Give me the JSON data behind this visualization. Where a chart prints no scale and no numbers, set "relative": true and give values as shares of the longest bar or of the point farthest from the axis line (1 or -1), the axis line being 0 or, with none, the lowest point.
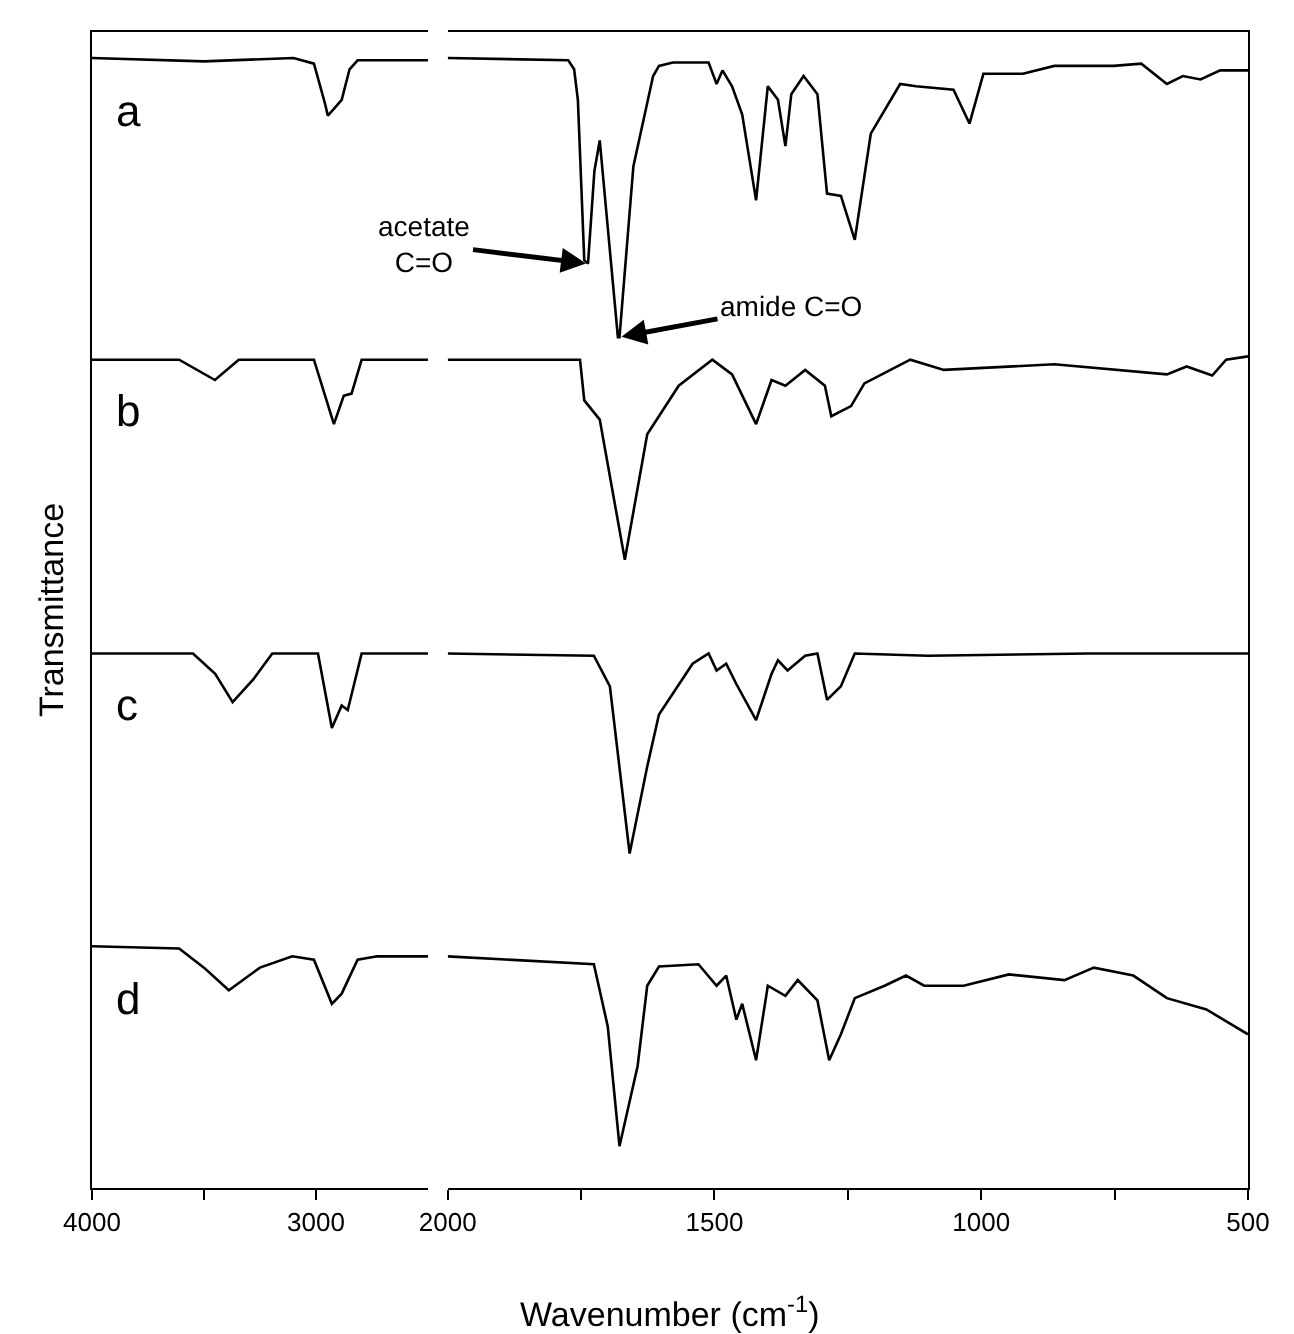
{
  "chart_data": [
    {
      "type": "line",
      "relative": true,
      "ylabel": "Transmittance",
      "tick_labels": "x",
      "xlim": [
        4000,
        2500
      ],
      "xticks": [
        4000,
        {
          "value": 3500,
          "label": null
        },
        3000
      ],
      "series": [
        {
          "name": "a",
          "color": "#000000",
          "x": [
            4000,
            3500,
            3100,
            3009,
            2960,
            2947,
            2920,
            2885,
            2850,
            2814,
            2500
          ],
          "values": [
            1.0,
            0.997,
            1.0,
            0.995,
            0.96,
            0.949,
            0.955,
            0.963,
            0.99,
            0.998,
            0.998
          ]
        },
        {
          "name": "b",
          "color": "#000000",
          "x": [
            4000,
            3611,
            3451,
            3345,
            3009,
            2920,
            2876,
            2841,
            2796,
            2500
          ],
          "values": [
            0.733,
            0.733,
            0.715,
            0.733,
            0.733,
            0.676,
            0.701,
            0.703,
            0.733,
            0.733
          ]
        },
        {
          "name": "c",
          "color": "#000000",
          "x": [
            4000,
            3549,
            3450,
            3372,
            3280,
            3195,
            2991,
            2929,
            2885,
            2858,
            2796,
            2500
          ],
          "values": [
            0.473,
            0.473,
            0.455,
            0.43,
            0.45,
            0.473,
            0.473,
            0.407,
            0.427,
            0.423,
            0.473,
            0.473
          ]
        },
        {
          "name": "d",
          "color": "#000000",
          "x": [
            4000,
            3611,
            3500,
            3389,
            3250,
            3106,
            3009,
            2929,
            2885,
            2814,
            2726,
            2500
          ],
          "values": [
            0.214,
            0.212,
            0.195,
            0.175,
            0.195,
            0.205,
            0.202,
            0.163,
            0.172,
            0.202,
            0.205,
            0.205
          ]
        }
      ]
    },
    {
      "type": "line",
      "relative": true,
      "xlabel": "Wavenumber (cm$^{-1}$)",
      "tick_labels": "x",
      "xlim": [
        2000,
        500
      ],
      "xticks": [
        2000,
        {
          "value": 1750,
          "label": null
        },
        1500,
        {
          "value": 1250,
          "label": null
        },
        1000,
        {
          "value": 750,
          "label": null
        },
        500
      ],
      "annotations": [
        {
          "text": "acetate\nC=O",
          "x": 1737,
          "y": 0.818
        },
        {
          "text": "amide C=O",
          "x": 1678,
          "y": 0.753
        }
      ],
      "series": [
        {
          "color": "#000000",
          "x": [
            2000,
            1774,
            1763,
            1756,
            1744,
            1737,
            1725,
            1715,
            1700,
            1681,
            1678,
            1652,
            1615,
            1604,
            1578,
            1511,
            1496,
            1485,
            1467,
            1448,
            1422,
            1400,
            1381,
            1367,
            1356,
            1333,
            1307,
            1289,
            1263,
            1237,
            1207,
            1152,
            1122,
            1052,
            1022,
            996,
            922,
            863,
            752,
            700,
            652,
            622,
            589,
            552,
            500
          ],
          "values": [
            1.0,
            0.998,
            0.99,
            0.963,
            0.821,
            0.818,
            0.9,
            0.927,
            0.85,
            0.753,
            0.753,
            0.904,
            0.984,
            0.993,
            0.996,
            0.996,
            0.977,
            0.989,
            0.975,
            0.95,
            0.874,
            0.975,
            0.963,
            0.922,
            0.968,
            0.984,
            0.968,
            0.88,
            0.878,
            0.839,
            0.933,
            0.977,
            0.975,
            0.972,
            0.942,
            0.986,
            0.986,
            0.993,
            0.993,
            0.995,
            0.977,
            0.984,
            0.981,
            0.989,
            0.989
          ]
        },
        {
          "color": "#000000",
          "x": [
            2000,
            1752,
            1744,
            1715,
            1668,
            1626,
            1567,
            1504,
            1467,
            1422,
            1393,
            1367,
            1330,
            1293,
            1281,
            1244,
            1219,
            1133,
            1070,
            863,
            652,
            615,
            567,
            541,
            500
          ],
          "values": [
            0.733,
            0.733,
            0.697,
            0.68,
            0.556,
            0.667,
            0.71,
            0.733,
            0.72,
            0.676,
            0.715,
            0.71,
            0.724,
            0.71,
            0.683,
            0.692,
            0.712,
            0.733,
            0.724,
            0.729,
            0.72,
            0.727,
            0.719,
            0.733,
            0.736
          ]
        },
        {
          "color": "#000000",
          "x": [
            2000,
            1726,
            1696,
            1659,
            1626,
            1604,
            1541,
            1511,
            1496,
            1478,
            1459,
            1422,
            1393,
            1381,
            1363,
            1330,
            1307,
            1289,
            1263,
            1237,
            1100,
            800,
            500
          ],
          "values": [
            0.473,
            0.471,
            0.444,
            0.296,
            0.373,
            0.419,
            0.464,
            0.473,
            0.458,
            0.464,
            0.446,
            0.414,
            0.455,
            0.467,
            0.458,
            0.471,
            0.473,
            0.432,
            0.444,
            0.473,
            0.471,
            0.473,
            0.473
          ]
        },
        {
          "color": "#000000",
          "x": [
            2000,
            1726,
            1700,
            1678,
            1644,
            1626,
            1604,
            1530,
            1496,
            1478,
            1459,
            1448,
            1422,
            1400,
            1367,
            1344,
            1307,
            1285,
            1263,
            1237,
            1181,
            1141,
            1107,
            1033,
            948,
            844,
            789,
            715,
            652,
            578,
            500
          ],
          "values": [
            0.205,
            0.198,
            0.143,
            0.037,
            0.108,
            0.179,
            0.196,
            0.198,
            0.179,
            0.188,
            0.149,
            0.163,
            0.113,
            0.179,
            0.17,
            0.184,
            0.166,
            0.113,
            0.136,
            0.168,
            0.179,
            0.188,
            0.179,
            0.179,
            0.189,
            0.184,
            0.195,
            0.188,
            0.168,
            0.158,
            0.136
          ]
        }
      ]
    }
  ]
}
